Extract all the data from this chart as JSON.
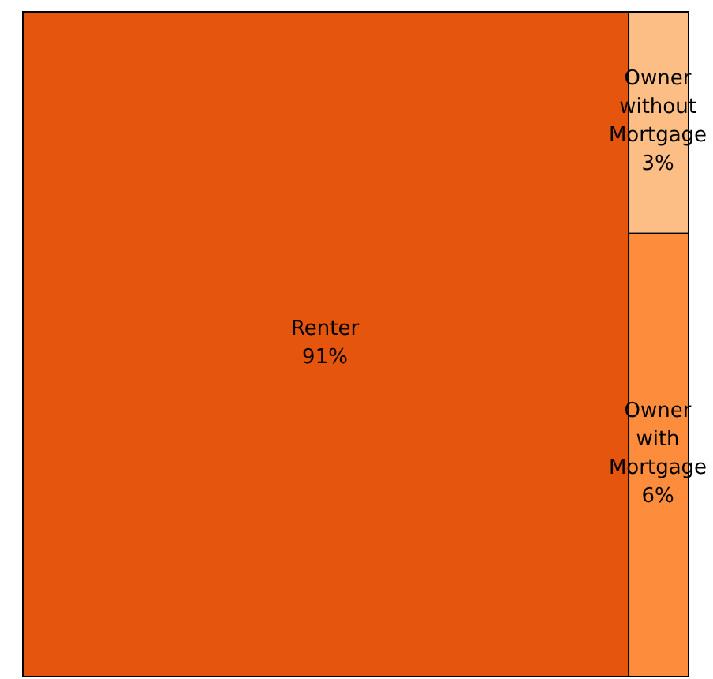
{
  "chart_data": {
    "type": "other",
    "categories": [
      "Renter",
      "Owner without Mortgage",
      "Owner with Mortgage"
    ],
    "values": [
      91,
      3,
      6
    ],
    "value_labels": [
      "91%",
      "3%",
      "6%"
    ],
    "colors": [
      "#e6550d",
      "#fdbe85",
      "#fd8d3c"
    ]
  }
}
